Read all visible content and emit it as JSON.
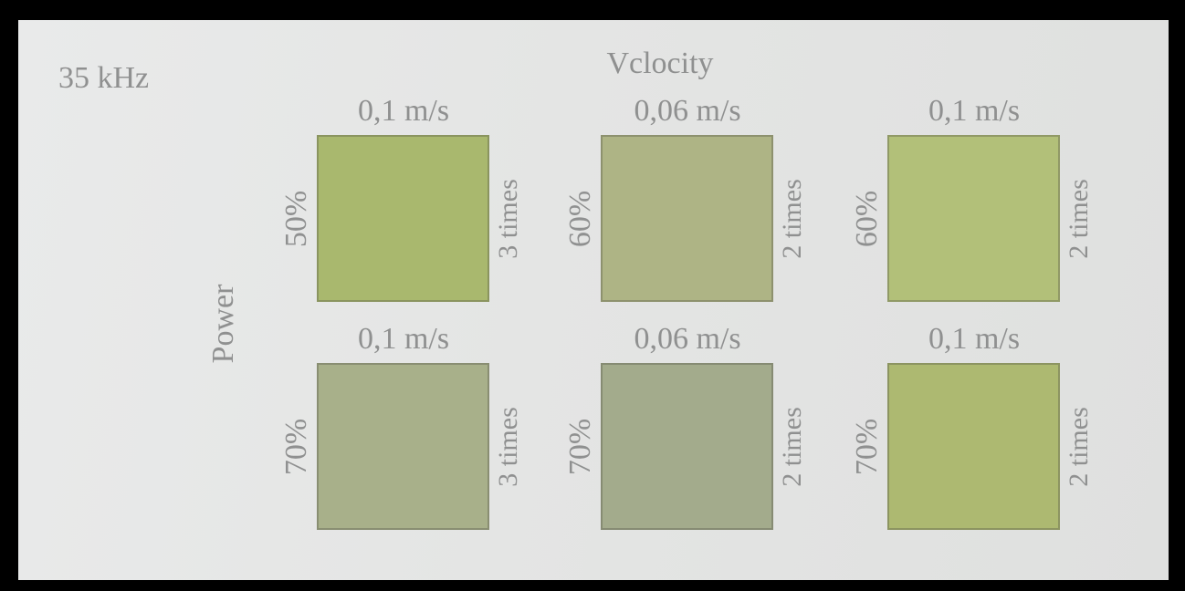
{
  "frequency": "35 kHz",
  "velocity_title": "Vclocity",
  "power_title": "Power",
  "samples": [
    {
      "velocity": "0,1 m/s",
      "power": "50%",
      "times": "3 times"
    },
    {
      "velocity": "0,06 m/s",
      "power": "60%",
      "times": "2 times"
    },
    {
      "velocity": "0,1 m/s",
      "power": "60%",
      "times": "2 times"
    },
    {
      "velocity": "0,1 m/s",
      "power": "70%",
      "times": "3 times"
    },
    {
      "velocity": "0,06 m/s",
      "power": "70%",
      "times": "2 times"
    },
    {
      "velocity": "0,1 m/s",
      "power": "70%",
      "times": "2 times"
    }
  ]
}
